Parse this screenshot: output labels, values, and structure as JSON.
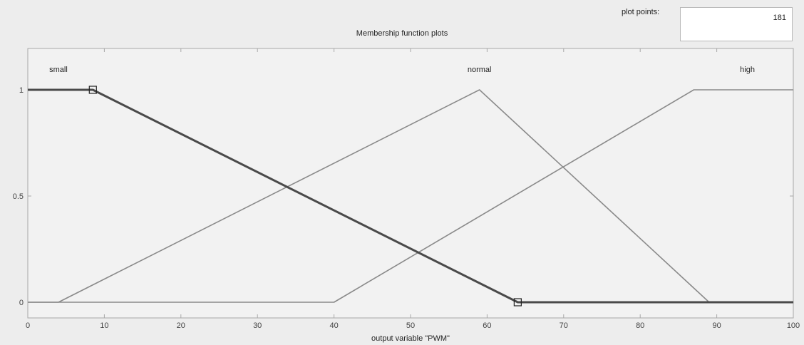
{
  "panel": {
    "title": "Membership function plots",
    "plot_points_label": "plot points:",
    "plot_points_value": "181"
  },
  "chart_data": {
    "type": "line",
    "title": "Membership function plots",
    "xlabel": "output variable \"PWM\"",
    "ylabel": "",
    "xlim": [
      0,
      100
    ],
    "ylim": [
      0,
      1
    ],
    "x_ticks": [
      0,
      10,
      20,
      30,
      40,
      50,
      60,
      70,
      80,
      90,
      100
    ],
    "y_ticks": [
      0,
      0.5,
      1
    ],
    "y_tick_labels": [
      "0",
      "0.5",
      "1"
    ],
    "grid": false,
    "selected_series": "small",
    "series": [
      {
        "name": "small",
        "label_x": 4,
        "points": [
          [
            0,
            1
          ],
          [
            8.5,
            1
          ],
          [
            64,
            0
          ],
          [
            100,
            0
          ]
        ]
      },
      {
        "name": "normal",
        "label_x": 59,
        "points": [
          [
            0,
            0
          ],
          [
            4,
            0
          ],
          [
            59,
            1
          ],
          [
            89,
            0
          ],
          [
            100,
            0
          ]
        ]
      },
      {
        "name": "high",
        "label_x": 94,
        "points": [
          [
            0,
            0
          ],
          [
            40,
            0
          ],
          [
            87,
            1
          ],
          [
            100,
            1
          ]
        ]
      }
    ],
    "handles": [
      [
        8.5,
        1
      ],
      [
        64,
        0
      ]
    ]
  },
  "colors": {
    "background": "#ededed",
    "plot_area": "#f2f2f2",
    "curve": "#8a8a8a",
    "selected_curve": "#4a4a4a",
    "axis": "#a8a8a8"
  }
}
